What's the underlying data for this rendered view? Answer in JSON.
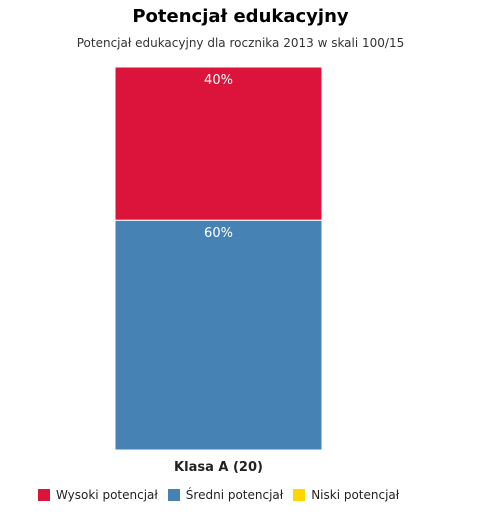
{
  "chart_data": {
    "type": "bar",
    "stacked": true,
    "title": "Potencjał edukacyjny",
    "subtitle": "Potencjał edukacyjny dla rocznika 2013 w skali 100/15",
    "categories": [
      "Klasa A (20)"
    ],
    "ylim": [
      0,
      100
    ],
    "series": [
      {
        "name": "Wysoki potencjał",
        "values": [
          40
        ],
        "label": "40%",
        "color": "#dc143c"
      },
      {
        "name": "Średni potencjał",
        "values": [
          60
        ],
        "label": "60%",
        "color": "#4682b4"
      },
      {
        "name": "Niski potencjał",
        "values": [
          0
        ],
        "label": "",
        "color": "#ffd700"
      }
    ],
    "legend_position": "bottom-left",
    "grid": false
  }
}
